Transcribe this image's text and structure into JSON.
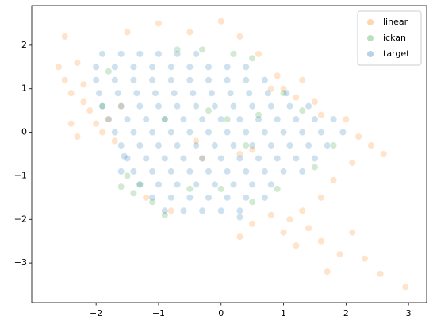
{
  "chart_data": {
    "type": "scatter",
    "xlim": [
      -3.03,
      3.29
    ],
    "ylim": [
      -3.91,
      2.91
    ],
    "xticks": [
      {
        "value": -2,
        "label": "−2"
      },
      {
        "value": -1,
        "label": "−1"
      },
      0,
      1,
      2,
      3
    ],
    "yticks": [
      {
        "value": -3,
        "label": "−3"
      },
      {
        "value": -2,
        "label": "−2"
      },
      {
        "value": -1,
        "label": "−1"
      },
      0,
      1,
      2
    ],
    "legend": "upper right",
    "opacity": 0.22,
    "series": [
      {
        "name": "linear",
        "color": "#ff7f0e",
        "x": [
          -2.6,
          -2.5,
          -2.4,
          -2.3,
          -2.2,
          -2.2,
          -2.1,
          -2.0,
          -1.9,
          -1.8,
          -1.7,
          -1.6,
          -2.5,
          -2.4,
          -2.3,
          -1.5,
          -1.0,
          -0.5,
          0.0,
          0.3,
          0.6,
          0.9,
          1.0,
          1.2,
          1.3,
          1.5,
          0.8,
          1.6,
          2.0,
          2.2,
          2.4,
          2.6,
          2.1,
          1.8,
          1.6,
          1.3,
          1.1,
          1.0,
          0.8,
          1.4,
          1.2,
          1.6,
          1.9,
          2.1,
          2.3,
          0.5,
          0.3,
          1.7,
          2.55,
          2.95,
          -0.4,
          -0.3,
          0.3,
          0.5,
          -1.2,
          -0.8
        ],
        "values": [
          1.5,
          1.2,
          0.9,
          1.6,
          1.1,
          0.7,
          0.5,
          0.2,
          0.0,
          0.3,
          -0.2,
          0.6,
          2.2,
          0.2,
          -0.1,
          2.3,
          2.5,
          2.3,
          2.55,
          2.2,
          1.8,
          1.3,
          1.0,
          0.8,
          1.2,
          0.7,
          1.0,
          0.4,
          0.3,
          -0.1,
          -0.3,
          -0.5,
          -0.7,
          -1.1,
          -1.5,
          -1.8,
          -2.0,
          -2.3,
          -1.9,
          -2.2,
          -2.6,
          -2.5,
          -2.8,
          -2.3,
          -2.9,
          -2.1,
          -2.4,
          -3.2,
          -3.25,
          -3.55,
          -0.2,
          -0.6,
          -0.5,
          -0.4,
          -1.5,
          -1.8
        ]
      },
      {
        "name": "ickan",
        "color": "#2ca02c",
        "x": [
          -1.6,
          -1.4,
          -1.3,
          -1.5,
          -1.1,
          -0.9,
          0.2,
          0.5,
          -0.3,
          -0.7,
          1.0,
          1.3,
          1.8,
          0.9,
          0.5,
          0.0,
          -0.5,
          0.1,
          -0.2,
          0.4,
          -1.8,
          -1.9,
          -0.9,
          0.6,
          1.5
        ],
        "values": [
          -1.25,
          -1.4,
          -1.2,
          -1.0,
          -1.6,
          -1.9,
          1.8,
          1.7,
          1.9,
          1.9,
          0.9,
          0.5,
          -0.3,
          -1.3,
          -1.6,
          -1.3,
          -1.3,
          0.3,
          0.5,
          -0.3,
          1.4,
          0.6,
          0.3,
          0.4,
          -0.8
        ]
      },
      {
        "name": "target",
        "color": "#1f77b4",
        "x": [
          -1.9,
          -1.6,
          -1.3,
          -1.0,
          -0.7,
          -0.4,
          -2.0,
          -1.7,
          -1.4,
          -1.1,
          -0.8,
          -0.5,
          -0.2,
          0.1,
          0.4,
          -2.0,
          -1.7,
          -1.4,
          -1.1,
          -0.8,
          -0.5,
          -0.2,
          0.1,
          0.4,
          0.7,
          -1.95,
          -1.65,
          -1.35,
          -1.05,
          -0.75,
          -0.45,
          -0.15,
          0.15,
          0.45,
          0.75,
          1.05,
          -1.9,
          -1.6,
          -1.3,
          -1.0,
          -0.7,
          -0.4,
          -0.1,
          0.2,
          0.5,
          0.8,
          1.1,
          1.4,
          -1.8,
          -1.5,
          -1.2,
          -0.9,
          -0.6,
          -0.3,
          0.0,
          0.3,
          0.6,
          0.9,
          1.2,
          1.5,
          1.8,
          -1.7,
          -1.4,
          -1.1,
          -0.8,
          -0.5,
          -0.2,
          0.1,
          0.4,
          0.7,
          1.0,
          1.3,
          1.6,
          1.95,
          -1.6,
          -1.3,
          -1.0,
          -0.7,
          -0.4,
          -0.1,
          0.2,
          0.5,
          0.8,
          1.1,
          1.4,
          1.7,
          -1.5,
          -1.2,
          -0.9,
          -0.6,
          -0.3,
          0.0,
          0.3,
          0.6,
          0.9,
          1.2,
          1.5,
          -1.4,
          -1.1,
          -0.8,
          -0.5,
          -0.2,
          0.1,
          0.4,
          0.7,
          1.0,
          1.3,
          -1.3,
          -1.0,
          -0.7,
          -0.4,
          -0.1,
          0.2,
          0.5,
          0.8,
          -1.1,
          -0.8,
          -0.5,
          -0.2,
          0.1,
          0.4,
          0.7,
          -0.9,
          -0.6,
          -0.3,
          0.0,
          0.3,
          -1.6,
          -1.55,
          0.3
        ],
        "values": [
          1.8,
          1.8,
          1.8,
          1.8,
          1.8,
          1.8,
          1.5,
          1.5,
          1.5,
          1.5,
          1.5,
          1.5,
          1.5,
          1.5,
          1.5,
          1.2,
          1.2,
          1.2,
          1.2,
          1.2,
          1.2,
          1.2,
          1.2,
          1.2,
          1.2,
          0.9,
          0.9,
          0.9,
          0.9,
          0.9,
          0.9,
          0.9,
          0.9,
          0.9,
          0.9,
          0.9,
          0.6,
          0.6,
          0.6,
          0.6,
          0.6,
          0.6,
          0.6,
          0.6,
          0.6,
          0.6,
          0.6,
          0.6,
          0.3,
          0.3,
          0.3,
          0.3,
          0.3,
          0.3,
          0.3,
          0.3,
          0.3,
          0.3,
          0.3,
          0.3,
          0.3,
          0.0,
          0.0,
          0.0,
          0.0,
          0.0,
          0.0,
          0.0,
          0.0,
          0.0,
          0.0,
          0.0,
          0.0,
          0.0,
          -0.3,
          -0.3,
          -0.3,
          -0.3,
          -0.3,
          -0.3,
          -0.3,
          -0.3,
          -0.3,
          -0.3,
          -0.3,
          -0.3,
          -0.6,
          -0.6,
          -0.6,
          -0.6,
          -0.6,
          -0.6,
          -0.6,
          -0.6,
          -0.6,
          -0.6,
          -0.6,
          -0.9,
          -0.9,
          -0.9,
          -0.9,
          -0.9,
          -0.9,
          -0.9,
          -0.9,
          -0.9,
          -0.9,
          -1.2,
          -1.2,
          -1.2,
          -1.2,
          -1.2,
          -1.2,
          -1.2,
          -1.2,
          -1.5,
          -1.5,
          -1.5,
          -1.5,
          -1.5,
          -1.5,
          -1.5,
          -1.8,
          -1.8,
          -1.8,
          -1.8,
          -1.8,
          -0.9,
          -0.55,
          -1.95
        ]
      }
    ]
  }
}
